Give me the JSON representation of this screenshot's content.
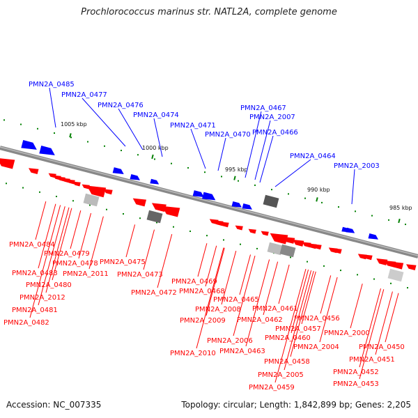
{
  "title": "Prochlorococcus marinus str. NATL2A, complete genome",
  "accession": "Accession: NC_007335",
  "stats": "Topology: circular; Length: 1,842,899 bp; Genes: 2,205",
  "colors": {
    "forward": "#0000ff",
    "reverse": "#ff0000",
    "backbone": "#808080",
    "tick": "#008000",
    "rna": "#999999"
  },
  "scale_labels": [
    "1005 kbp",
    "1000 kbp",
    "995 kbp",
    "990 kbp",
    "985 kbp"
  ],
  "forward_genes": [
    "PMN2A_0485",
    "PMN2A_0477",
    "PMN2A_0476",
    "PMN2A_0474",
    "PMN2A_0471",
    "PMN2A_0470",
    "PMN2A_0467",
    "PMN2A_2007",
    "PMN2A_0466",
    "PMN2A_0464",
    "PMN2A_2003"
  ],
  "reverse_genes": [
    "PMN2A_0484",
    "PMN2A_0479",
    "PMN2A_0483",
    "PMN2A_0478",
    "PMN2A_2011",
    "PMN2A_0475",
    "PMN2A_0480",
    "PMN2A_0473",
    "PMN2A_2012",
    "PMN2A_0472",
    "PMN2A_0481",
    "PMN2A_0482",
    "PMN2A_0469",
    "PMN2A_0468",
    "PMN2A_0465",
    "PMN2A_2008",
    "PMN2A_0461",
    "PMN2A_2009",
    "PMN2A_0462",
    "PMN2A_0456",
    "PMN2A_0457",
    "PMN2A_2000",
    "PMN2A_0460",
    "PMN2A_2006",
    "PMN2A_2004",
    "PMN2A_0450",
    "PMN2A_0463",
    "PMN2A_2010",
    "PMN2A_0451",
    "PMN2A_0458",
    "PMN2A_0452",
    "PMN2A_2005",
    "PMN2A_0453",
    "PMN2A_0459"
  ]
}
